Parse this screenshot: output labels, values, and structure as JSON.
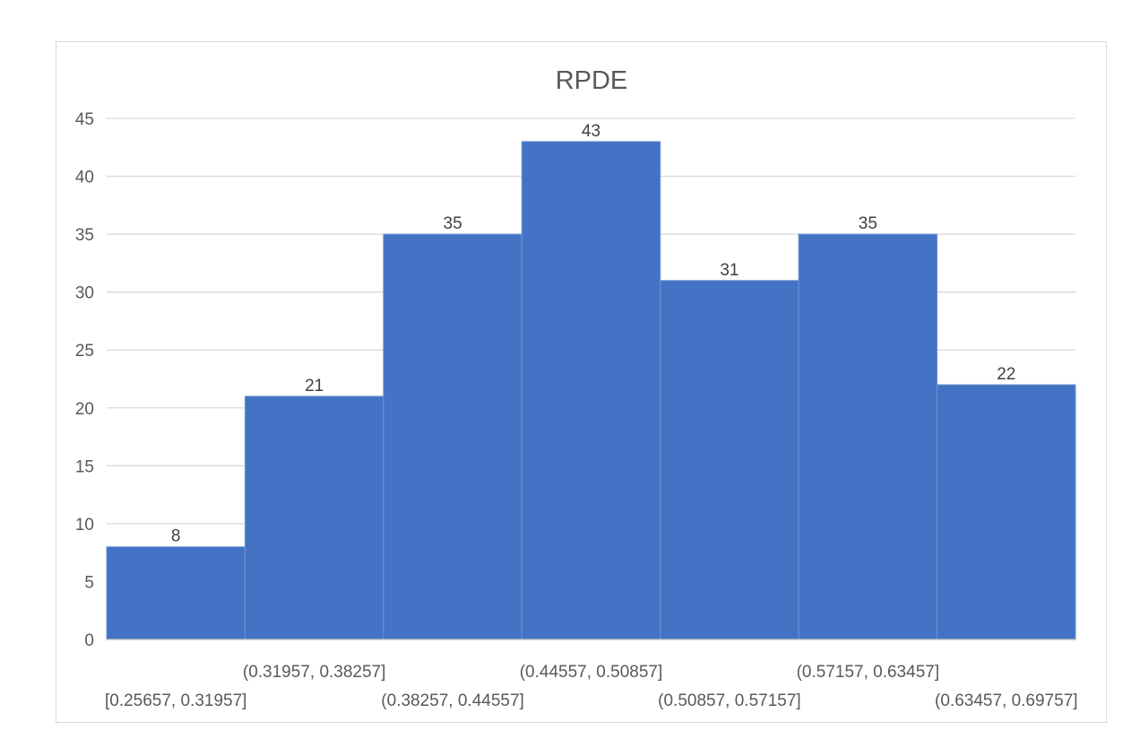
{
  "chart_data": {
    "type": "bar",
    "title": "RPDE",
    "xlabel": "",
    "ylabel": "",
    "categories": [
      "[0.25657, 0.31957]",
      "(0.31957, 0.38257]",
      "(0.38257, 0.44557]",
      "(0.44557, 0.50857]",
      "(0.50857, 0.57157]",
      "(0.57157, 0.63457]",
      "(0.63457, 0.69757]"
    ],
    "values": [
      8,
      21,
      35,
      43,
      31,
      35,
      22
    ],
    "ylim": [
      0,
      45
    ],
    "yticks": [
      0,
      5,
      10,
      15,
      20,
      25,
      30,
      35,
      40,
      45
    ],
    "grid": true,
    "legend": "none",
    "colors": {
      "bar": "#4472c4",
      "bar_edge": "#6f93d3",
      "grid": "#d9d9d9",
      "axis": "#bfbfbf"
    }
  }
}
